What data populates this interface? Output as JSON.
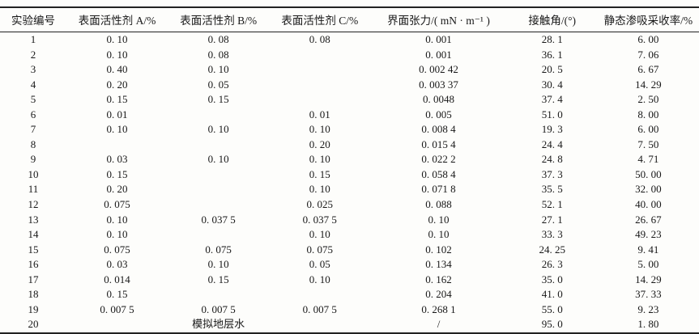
{
  "page": {
    "background_color": "#fdfdfb",
    "text_color": "#181818",
    "rule_color": "#222222"
  },
  "table": {
    "columns": [
      "实验编号",
      "表面活性剂 A/%",
      "表面活性剂 B/%",
      "表面活性剂 C/%",
      "界面张力/( mN · m⁻¹ )",
      "接触角/(°)",
      "静态渗吸采收率/%"
    ],
    "rows": [
      {
        "cells": [
          "1",
          "0. 10",
          "0. 08",
          "0. 08",
          "0. 001",
          "28. 1",
          "6. 00"
        ]
      },
      {
        "cells": [
          "2",
          "0. 10",
          "0. 08",
          "",
          "0. 001",
          "36. 1",
          "7. 06"
        ]
      },
      {
        "cells": [
          "3",
          "0. 40",
          "0. 10",
          "",
          "0. 002 42",
          "20. 5",
          "6. 67"
        ]
      },
      {
        "cells": [
          "4",
          "0. 20",
          "0. 05",
          "",
          "0. 003 37",
          "30. 4",
          "14. 29"
        ]
      },
      {
        "cells": [
          "5",
          "0. 15",
          "0. 15",
          "",
          "0. 0048",
          "37. 4",
          "2. 50"
        ]
      },
      {
        "cells": [
          "6",
          "0. 01",
          "",
          "0. 01",
          "0. 005",
          "51. 0",
          "8. 00"
        ]
      },
      {
        "cells": [
          "7",
          "0. 10",
          "0. 10",
          "0. 10",
          "0. 008 4",
          "19. 3",
          "6. 00"
        ]
      },
      {
        "cells": [
          "8",
          "",
          "",
          "0. 20",
          "0. 015 4",
          "24. 4",
          "7. 50"
        ]
      },
      {
        "cells": [
          "9",
          "0. 03",
          "0. 10",
          "0. 10",
          "0. 022 2",
          "24. 8",
          "4. 71"
        ]
      },
      {
        "cells": [
          "10",
          "0. 15",
          "",
          "0. 15",
          "0. 058 4",
          "37. 3",
          "50. 00"
        ]
      },
      {
        "cells": [
          "11",
          "0. 20",
          "",
          "0. 10",
          "0. 071 8",
          "35. 5",
          "32. 00"
        ]
      },
      {
        "cells": [
          "12",
          "0. 075",
          "",
          "0. 025",
          "0. 088",
          "52. 1",
          "40. 00"
        ]
      },
      {
        "cells": [
          "13",
          "0. 10",
          "0. 037 5",
          "0. 037 5",
          "0. 10",
          "27. 1",
          "26. 67"
        ]
      },
      {
        "cells": [
          "14",
          "0. 10",
          "",
          "0. 10",
          "0. 10",
          "33. 3",
          "49. 23"
        ]
      },
      {
        "cells": [
          "15",
          "0. 075",
          "0. 075",
          "0. 075",
          "0. 102",
          "24. 25",
          "9. 41"
        ]
      },
      {
        "cells": [
          "16",
          "0. 03",
          "0. 10",
          "0. 05",
          "0. 134",
          "26. 3",
          "5. 00"
        ]
      },
      {
        "cells": [
          "17",
          "0. 014",
          "0. 15",
          "0. 10",
          "0. 162",
          "35. 0",
          "14. 29"
        ]
      },
      {
        "cells": [
          "18",
          "0. 15",
          "",
          "",
          "0. 204",
          "41. 0",
          "37. 33"
        ]
      },
      {
        "cells": [
          "19",
          "0. 007 5",
          "0. 007 5",
          "0. 007 5",
          "0. 268 1",
          "55. 0",
          "9. 23"
        ]
      },
      {
        "cells": [
          "20",
          "模拟地层水",
          "/",
          "95. 0",
          "1. 80"
        ],
        "colspans": [
          1,
          3,
          1,
          1,
          1
        ]
      }
    ]
  }
}
